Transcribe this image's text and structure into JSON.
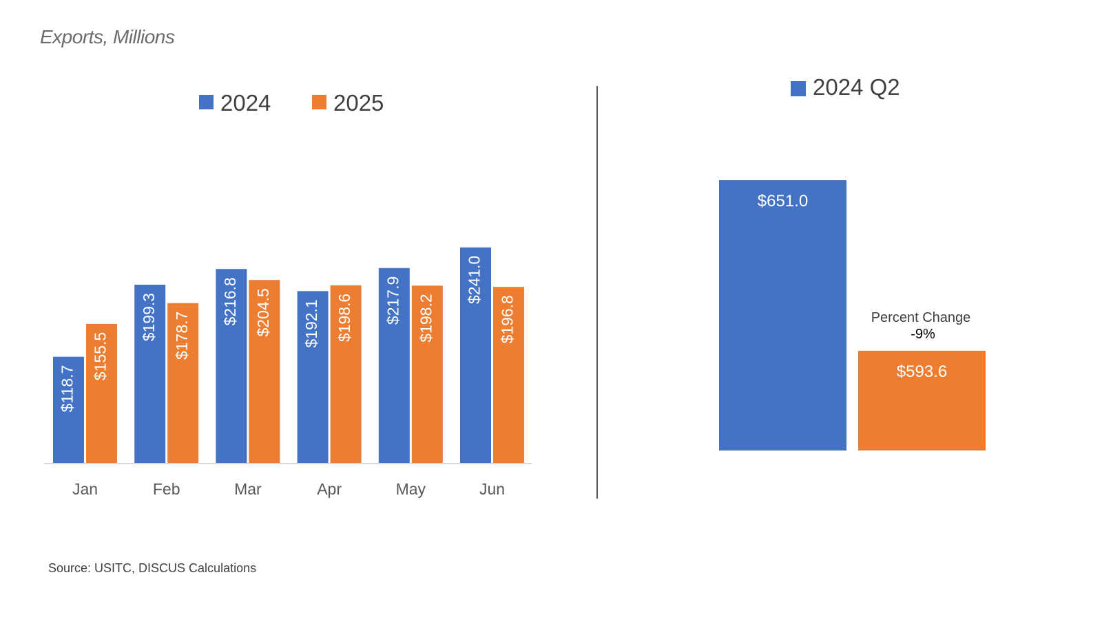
{
  "title": "Exports, Millions",
  "source": "Source: USITC, DISCUS Calculations",
  "colors": {
    "s2024": "#4472C4",
    "s2025": "#ED7D31",
    "axis": "#D9D9D9",
    "divider": "#595959"
  },
  "chart_data": [
    {
      "type": "bar",
      "categories": [
        "Jan",
        "Feb",
        "Mar",
        "Apr",
        "May",
        "Jun"
      ],
      "series": [
        {
          "name": "2024",
          "values": [
            118.7,
            199.3,
            216.8,
            192.1,
            217.9,
            241.0
          ],
          "labels": [
            "$118.7",
            "$199.3",
            "$216.8",
            "$192.1",
            "$217.9",
            "$241.0"
          ]
        },
        {
          "name": "2025",
          "values": [
            155.5,
            178.7,
            204.5,
            198.6,
            198.2,
            196.8
          ],
          "labels": [
            "$155.5",
            "$178.7",
            "$204.5",
            "$198.6",
            "$198.2",
            "$196.8"
          ]
        }
      ],
      "legend": "top",
      "ylim": [
        0,
        350
      ],
      "grid": false
    },
    {
      "type": "bar",
      "legend_label": "2024 Q2",
      "values": [
        651.0,
        593.6
      ],
      "labels": [
        "$651.0",
        "$593.6"
      ],
      "annotation": {
        "title": "Percent Change",
        "value": "-9%"
      },
      "ylim": [
        0,
        850
      ],
      "grid": false
    }
  ]
}
